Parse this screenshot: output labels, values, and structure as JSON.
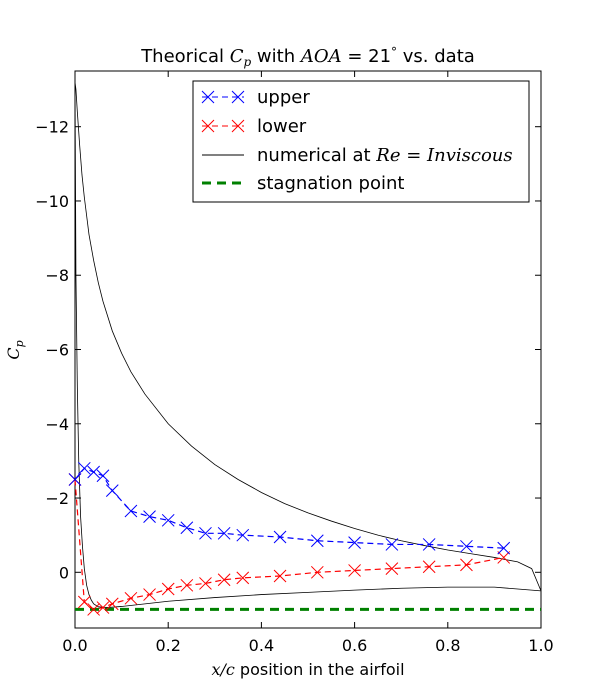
{
  "chart_data": {
    "type": "line",
    "title": {
      "prefix": "Theorical ",
      "cp_main": "C",
      "cp_sub": "p",
      "middle": " with ",
      "aoa": "AOA",
      "equals": " = 21",
      "degree": "°",
      "suffix": " vs. data"
    },
    "xlabel": {
      "var": "x/c",
      "text": " position in the airfoil"
    },
    "ylabel": {
      "main": "C",
      "sub": "p"
    },
    "xlim": [
      0,
      1
    ],
    "ylim": [
      1.5,
      -13.5
    ],
    "y_inverted": true,
    "x_ticks": [
      "0.0",
      "0.2",
      "0.4",
      "0.6",
      "0.8",
      "1.0"
    ],
    "y_ticks": [
      "−12",
      "−10",
      "−8",
      "−6",
      "−4",
      "−2",
      "0"
    ],
    "legend": {
      "position": "top-right",
      "entries": [
        {
          "label": "upper"
        },
        {
          "label": "lower"
        },
        {
          "label_prefix": "numerical at ",
          "label_math": "Re = Inviscous"
        },
        {
          "label": "stagnation point"
        }
      ]
    },
    "colors": {
      "upper": "#0000ff",
      "lower": "#ff0000",
      "numerical": "#000000",
      "stagnation": "#008000"
    },
    "series": [
      {
        "name": "upper",
        "style": "dashed-x",
        "x": [
          0.0,
          0.02,
          0.04,
          0.06,
          0.08,
          0.12,
          0.16,
          0.2,
          0.24,
          0.28,
          0.32,
          0.36,
          0.44,
          0.52,
          0.6,
          0.68,
          0.76,
          0.84,
          0.92
        ],
        "y": [
          -2.5,
          -2.8,
          -2.7,
          -2.6,
          -2.2,
          -1.65,
          -1.5,
          -1.4,
          -1.2,
          -1.05,
          -1.05,
          -1.0,
          -0.95,
          -0.85,
          -0.8,
          -0.75,
          -0.75,
          -0.7,
          -0.65
        ]
      },
      {
        "name": "lower",
        "style": "dashed-x",
        "x": [
          0.0,
          0.02,
          0.04,
          0.06,
          0.08,
          0.12,
          0.16,
          0.2,
          0.24,
          0.28,
          0.32,
          0.36,
          0.44,
          0.52,
          0.6,
          0.68,
          0.76,
          0.84,
          0.92
        ],
        "y": [
          -2.5,
          0.8,
          1.0,
          0.95,
          0.85,
          0.7,
          0.6,
          0.45,
          0.35,
          0.3,
          0.2,
          0.15,
          0.1,
          0.0,
          -0.05,
          -0.1,
          -0.15,
          -0.2,
          -0.4
        ]
      },
      {
        "name": "numerical-upper",
        "style": "solid",
        "x": [
          0.0,
          0.002,
          0.005,
          0.01,
          0.015,
          0.02,
          0.03,
          0.04,
          0.05,
          0.06,
          0.08,
          0.1,
          0.12,
          0.15,
          0.2,
          0.25,
          0.3,
          0.35,
          0.4,
          0.45,
          0.5,
          0.55,
          0.6,
          0.65,
          0.7,
          0.75,
          0.8,
          0.85,
          0.9,
          0.95,
          0.98,
          1.0
        ],
        "y": [
          -13.2,
          -13.0,
          -12.4,
          -11.5,
          -10.7,
          -10.1,
          -9.1,
          -8.4,
          -7.8,
          -7.3,
          -6.5,
          -5.9,
          -5.4,
          -4.8,
          -4.0,
          -3.4,
          -2.9,
          -2.5,
          -2.15,
          -1.85,
          -1.6,
          -1.38,
          -1.18,
          -1.0,
          -0.85,
          -0.72,
          -0.6,
          -0.5,
          -0.4,
          -0.28,
          -0.1,
          0.5
        ]
      },
      {
        "name": "numerical-lower",
        "style": "solid",
        "x": [
          0.0,
          0.002,
          0.005,
          0.008,
          0.012,
          0.016,
          0.02,
          0.025,
          0.03,
          0.035,
          0.04,
          0.05,
          0.07,
          0.1,
          0.15,
          0.2,
          0.3,
          0.4,
          0.5,
          0.6,
          0.7,
          0.8,
          0.9,
          0.95,
          0.98,
          1.0
        ],
        "y": [
          -13.2,
          -8.0,
          -5.0,
          -3.0,
          -1.5,
          -0.7,
          -0.1,
          0.35,
          0.6,
          0.75,
          0.85,
          0.93,
          0.95,
          0.92,
          0.85,
          0.78,
          0.68,
          0.6,
          0.54,
          0.48,
          0.43,
          0.4,
          0.4,
          0.45,
          0.48,
          0.5
        ]
      },
      {
        "name": "stagnation point",
        "style": "green-dashed",
        "x": [
          0.0,
          1.0
        ],
        "y": [
          1.0,
          1.0
        ]
      }
    ]
  }
}
